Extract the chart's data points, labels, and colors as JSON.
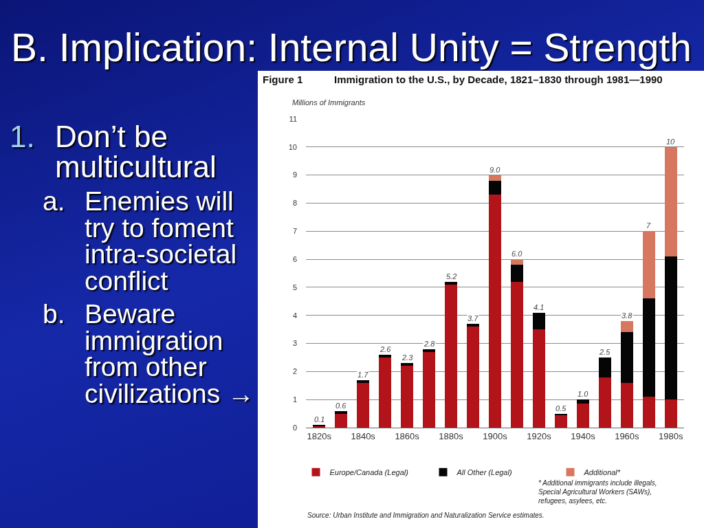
{
  "chart_data": {
    "type": "bar",
    "title": "B. Implication: Internal Unity = Strength",
    "subtitle": "Immigration to the U.S., by Decade, 1821–1830 through 1981—1990",
    "ylabel": "Millions of Immigrants",
    "annotations": [
      "1. Don’t be multicultural",
      "a. Enemies will try to foment intra-societal conflict",
      "b. Beware immigration from other civilizations →",
      "Figure 1",
      "* Additional immigrants include illegals, Special Agricultural Workers (SAWs), refugees, asylees, etc.",
      "Source: Urban Institute and Immigration and Naturalization Service estimates."
    ],
    "categories": [
      "1820s",
      null,
      "1840s",
      null,
      "1860s",
      null,
      "1880s",
      null,
      "1900s",
      null,
      "1920s",
      null,
      "1940s",
      null,
      "1960s",
      null,
      "1980s"
    ],
    "series": [
      {
        "name": "Europe/Canada (Legal)",
        "color": "#b3141a",
        "values": [
          0.07,
          0.5,
          1.6,
          2.5,
          2.2,
          2.7,
          5.1,
          3.6,
          8.3,
          5.2,
          3.5,
          0.45,
          0.85,
          1.8,
          1.6,
          1.1,
          1.0
        ]
      },
      {
        "name": "All Other (Legal)",
        "color": "#050505",
        "values": [
          0.03,
          0.1,
          0.1,
          0.1,
          0.1,
          0.1,
          0.1,
          0.1,
          0.5,
          0.6,
          0.6,
          0.05,
          0.15,
          0.7,
          1.8,
          3.5,
          5.1
        ]
      },
      {
        "name": "Additional*",
        "color": "#d8775f",
        "values": [
          0,
          0,
          0,
          0,
          0,
          0,
          0,
          0,
          0.2,
          0.2,
          0,
          0,
          0,
          0,
          0.4,
          2.4,
          3.9
        ]
      }
    ],
    "stacked": true,
    "totals": [
      "0.1",
      "0.6",
      "1.7",
      "2.6",
      "2.3",
      "2.8",
      "5.2",
      "3.7",
      "9.0",
      "6.0",
      "4.1",
      "0.5",
      "1.0",
      "2.5",
      "3.8",
      "7",
      "10"
    ],
    "ylim": [
      0,
      11
    ],
    "yticks": [
      0,
      1,
      2,
      3,
      4,
      5,
      6,
      7,
      8,
      9,
      10,
      11
    ],
    "grid": "y",
    "legend": "bottom"
  }
}
